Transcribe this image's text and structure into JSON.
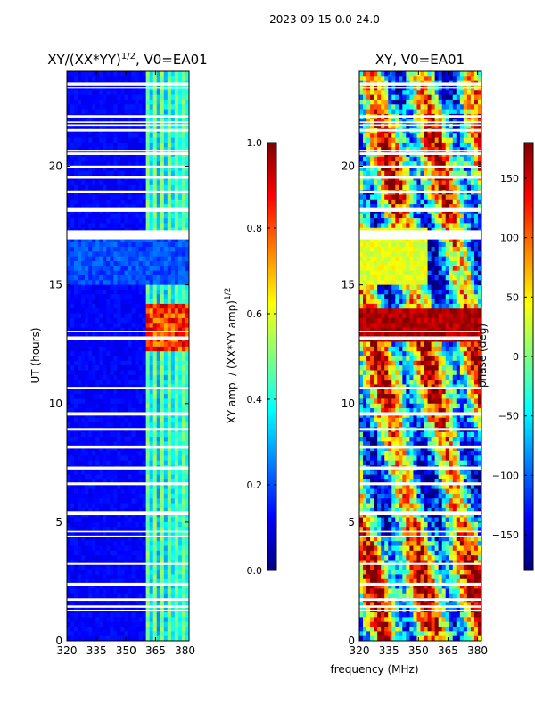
{
  "figure": {
    "suptitle": "2023-09-15 0.0-24.0"
  },
  "chart_data": [
    {
      "type": "heatmap",
      "panel": "left",
      "title_main": "XY/(XX*YY)",
      "title_exp": "1/2",
      "title_suffix": ", V0=EA01",
      "xlabel": "",
      "ylabel": "UT (hours)",
      "xlim": [
        320,
        382
      ],
      "ylim": [
        0,
        24
      ],
      "xticks": [
        "320",
        "335",
        "350",
        "365",
        "380"
      ],
      "xtick_values": [
        320,
        335,
        350,
        365,
        380
      ],
      "yticks": [
        "0",
        "5",
        "10",
        "15",
        "20"
      ],
      "ytick_values": [
        0,
        5,
        10,
        15,
        20
      ],
      "colorbar": {
        "label_main": "XY amp. / (XX*YY amp)",
        "label_exp": "1/2",
        "ticks": [
          "0.0",
          "0.2",
          "0.4",
          "0.6",
          "0.8",
          "1.0"
        ],
        "tick_values": [
          0.0,
          0.2,
          0.4,
          0.6,
          0.8,
          1.0
        ],
        "range": [
          0.0,
          1.0
        ]
      },
      "features": {
        "bright_band_mhz": [
          360,
          382
        ],
        "strong_hours": [
          12.2,
          14.3
        ],
        "flagged_gap_hours": [
          17.0,
          17.3
        ]
      }
    },
    {
      "type": "heatmap",
      "panel": "right",
      "title_main": "XY, V0=EA01",
      "xlabel": "frequency (MHz)",
      "ylabel": "",
      "xlim": [
        320,
        382
      ],
      "ylim": [
        0,
        24
      ],
      "xticks": [
        "320",
        "335",
        "350",
        "365",
        "380"
      ],
      "xtick_values": [
        320,
        335,
        350,
        365,
        380
      ],
      "yticks": [
        "0",
        "5",
        "10",
        "15",
        "20"
      ],
      "ytick_values": [
        0,
        5,
        10,
        15,
        20
      ],
      "colorbar": {
        "label_main": "phase (deg)",
        "ticks": [
          "−150",
          "−100",
          "−50",
          "0",
          "50",
          "100",
          "150"
        ],
        "tick_values": [
          -150,
          -100,
          -50,
          0,
          50,
          100,
          150
        ],
        "range": [
          -180,
          180
        ]
      }
    }
  ]
}
